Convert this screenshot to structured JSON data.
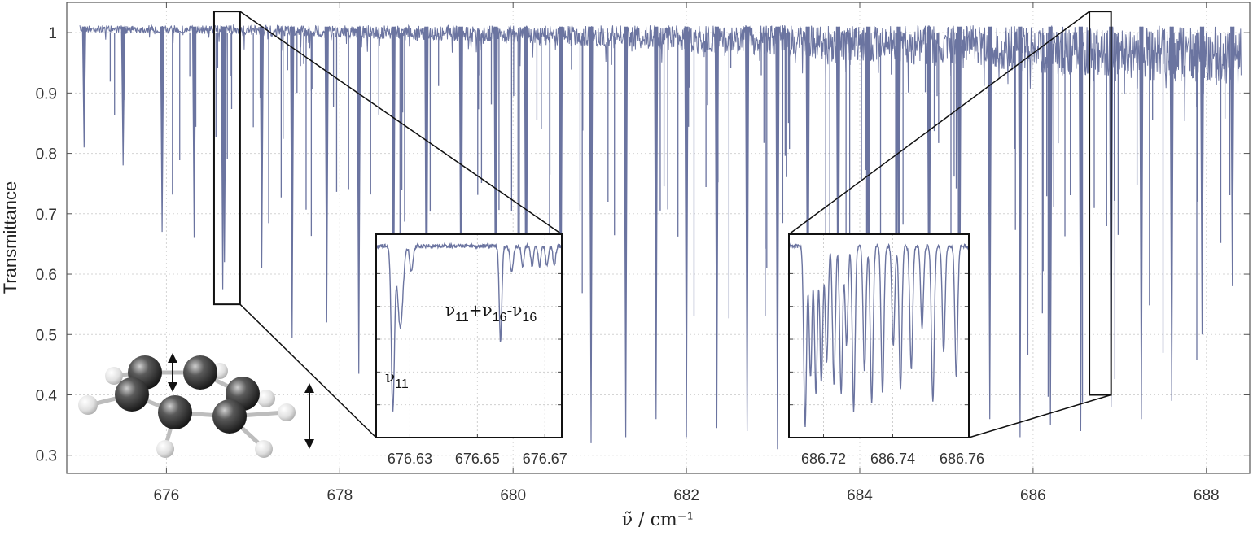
{
  "chart_data": {
    "type": "line",
    "xlabel": "ν̃ / cm⁻¹",
    "ylabel": "Transmittance",
    "xlim": [
      674.85,
      688.5
    ],
    "ylim": [
      0.27,
      1.05
    ],
    "grid": true,
    "line_color": "#6b74a0",
    "x_ticks": [
      "676",
      "678",
      "680",
      "682",
      "684",
      "686",
      "688"
    ],
    "y_ticks": [
      "0.3",
      "0.4",
      "0.5",
      "0.6",
      "0.7",
      "0.8",
      "0.9",
      "1"
    ],
    "baseline": 1.0,
    "absorption_lines": [
      {
        "x": 675.05,
        "y": 0.81
      },
      {
        "x": 675.5,
        "y": 0.78
      },
      {
        "x": 675.95,
        "y": 0.67
      },
      {
        "x": 676.32,
        "y": 0.66
      },
      {
        "x": 676.65,
        "y": 0.575
      },
      {
        "x": 676.67,
        "y": 0.62
      },
      {
        "x": 677.1,
        "y": 0.61
      },
      {
        "x": 677.45,
        "y": 0.495
      },
      {
        "x": 677.85,
        "y": 0.52
      },
      {
        "x": 678.22,
        "y": 0.435
      },
      {
        "x": 678.62,
        "y": 0.44
      },
      {
        "x": 679.0,
        "y": 0.4
      },
      {
        "x": 679.4,
        "y": 0.42
      },
      {
        "x": 679.8,
        "y": 0.385
      },
      {
        "x": 680.15,
        "y": 0.37
      },
      {
        "x": 680.55,
        "y": 0.365
      },
      {
        "x": 680.9,
        "y": 0.32
      },
      {
        "x": 681.3,
        "y": 0.33
      },
      {
        "x": 681.65,
        "y": 0.36
      },
      {
        "x": 682.0,
        "y": 0.33
      },
      {
        "x": 682.35,
        "y": 0.345
      },
      {
        "x": 682.7,
        "y": 0.34
      },
      {
        "x": 683.05,
        "y": 0.31
      },
      {
        "x": 683.4,
        "y": 0.35
      },
      {
        "x": 683.75,
        "y": 0.36
      },
      {
        "x": 684.1,
        "y": 0.38
      },
      {
        "x": 684.45,
        "y": 0.38
      },
      {
        "x": 684.8,
        "y": 0.37
      },
      {
        "x": 685.15,
        "y": 0.34
      },
      {
        "x": 685.5,
        "y": 0.36
      },
      {
        "x": 685.85,
        "y": 0.33
      },
      {
        "x": 686.2,
        "y": 0.35
      },
      {
        "x": 686.55,
        "y": 0.34
      },
      {
        "x": 686.9,
        "y": 0.38
      },
      {
        "x": 687.25,
        "y": 0.36
      },
      {
        "x": 687.6,
        "y": 0.39
      },
      {
        "x": 687.95,
        "y": 0.5
      },
      {
        "x": 688.3,
        "y": 0.58
      }
    ],
    "zoom_boxes": [
      {
        "xlim": [
          676.55,
          676.85
        ],
        "ylim": [
          0.55,
          1.035
        ]
      },
      {
        "xlim": [
          686.65,
          686.9
        ],
        "ylim": [
          0.4,
          1.035
        ]
      }
    ],
    "insets": [
      {
        "x_ticks": [
          "676.63",
          "676.65",
          "676.67"
        ],
        "xlim": [
          676.62,
          676.675
        ],
        "ylim": [
          0.4,
          1.02
        ],
        "annotations": [
          {
            "text": "ν",
            "sub": "11",
            "x": 676.624,
            "y": 0.49
          },
          {
            "text": "ν",
            "sub": "11",
            "text2": "+ν",
            "sub2": "16",
            "text3": "-ν",
            "sub3": "16",
            "x": 676.64,
            "y": 0.75
          }
        ]
      },
      {
        "x_ticks": [
          "686.72",
          "686.74",
          "686.76"
        ],
        "xlim": [
          686.71,
          686.762
        ],
        "ylim": [
          0.4,
          1.02
        ]
      }
    ]
  }
}
